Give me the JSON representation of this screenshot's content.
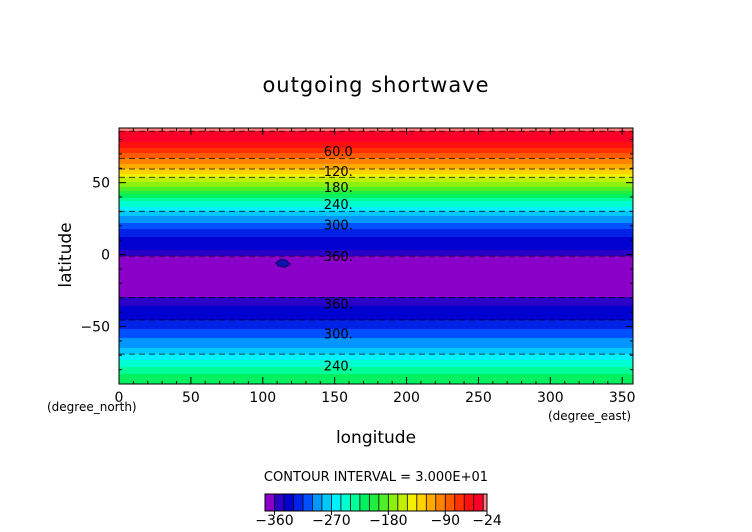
{
  "chart_data": {
    "type": "heatmap",
    "title": "outgoing shortwave",
    "xlabel": "longitude",
    "ylabel": "latitude",
    "x_unit": "(degree_east)",
    "y_unit": "(degree_north)",
    "xlim": [
      0,
      357.5
    ],
    "ylim": [
      -90,
      88
    ],
    "x_ticks": [
      0,
      50,
      100,
      150,
      200,
      250,
      300,
      350
    ],
    "x_tick_labels": [
      "0",
      "50",
      "100",
      "150",
      "200",
      "250",
      "300",
      "350"
    ],
    "y_ticks": [
      50,
      0,
      -50
    ],
    "y_tick_labels": [
      "50",
      "0",
      "−50"
    ],
    "contour_interval_text": "CONTOUR INTERVAL = 3.000E+01",
    "contour_interval": 30,
    "zonal_profile": {
      "lat": [
        88,
        80,
        74,
        68,
        62,
        57,
        52,
        47,
        42,
        37,
        32,
        27,
        22,
        17,
        12,
        7,
        2,
        -3,
        -10,
        -20,
        -28,
        -33,
        -38,
        -43,
        -48,
        -53,
        -58,
        -63,
        -68,
        -73,
        -78,
        -85,
        -90
      ],
      "value": [
        -26,
        -40,
        -60,
        -85,
        -110,
        -130,
        -160,
        -180,
        -210,
        -240,
        -260,
        -285,
        -300,
        -318,
        -330,
        -340,
        -346,
        -368,
        -368,
        -368,
        -367,
        -348,
        -342,
        -335,
        -325,
        -312,
        -300,
        -290,
        -275,
        -255,
        -240,
        -220,
        -210
      ]
    },
    "contour_labels": [
      {
        "text": "60.0",
        "lon": 140,
        "lat": 72
      },
      {
        "text": "120.",
        "lon": 140,
        "lat": 58
      },
      {
        "text": "180.",
        "lon": 140,
        "lat": 47
      },
      {
        "text": "240.",
        "lon": 140,
        "lat": 35
      },
      {
        "text": "300.",
        "lon": 140,
        "lat": 21
      },
      {
        "text": "360.",
        "lon": 140,
        "lat": -1
      },
      {
        "text": "360.",
        "lon": 140,
        "lat": -34
      },
      {
        "text": "300.",
        "lon": 140,
        "lat": -55
      },
      {
        "text": "240.",
        "lon": 140,
        "lat": -77
      }
    ],
    "colorbar": {
      "min": -375,
      "max": -24,
      "tick_values": [
        -360,
        -270,
        -180,
        -90,
        -24
      ],
      "tick_labels": [
        "−360",
        "−270",
        "−180",
        "−90",
        "−24"
      ],
      "bands": [
        {
          "from": -375,
          "to": -360,
          "color": "#8a00c8"
        },
        {
          "from": -360,
          "to": -345,
          "color": "#2a00c8"
        },
        {
          "from": -345,
          "to": -330,
          "color": "#0000d0"
        },
        {
          "from": -330,
          "to": -315,
          "color": "#0022e6"
        },
        {
          "from": -315,
          "to": -300,
          "color": "#0050ff"
        },
        {
          "from": -300,
          "to": -285,
          "color": "#0096ff"
        },
        {
          "from": -285,
          "to": -270,
          "color": "#00c8ff"
        },
        {
          "from": -270,
          "to": -255,
          "color": "#00f0ff"
        },
        {
          "from": -255,
          "to": -240,
          "color": "#00ffd0"
        },
        {
          "from": -240,
          "to": -225,
          "color": "#00ff98"
        },
        {
          "from": -225,
          "to": -210,
          "color": "#00f060"
        },
        {
          "from": -210,
          "to": -195,
          "color": "#20ee40"
        },
        {
          "from": -195,
          "to": -180,
          "color": "#50f028"
        },
        {
          "from": -180,
          "to": -165,
          "color": "#8cf010"
        },
        {
          "from": -165,
          "to": -150,
          "color": "#c0f000"
        },
        {
          "from": -150,
          "to": -135,
          "color": "#f0f000"
        },
        {
          "from": -135,
          "to": -120,
          "color": "#ffd200"
        },
        {
          "from": -120,
          "to": -105,
          "color": "#ffaa00"
        },
        {
          "from": -105,
          "to": -90,
          "color": "#ff8200"
        },
        {
          "from": -90,
          "to": -75,
          "color": "#ff5a00"
        },
        {
          "from": -75,
          "to": -60,
          "color": "#ff3000"
        },
        {
          "from": -60,
          "to": -45,
          "color": "#ff1010"
        },
        {
          "from": -45,
          "to": -30,
          "color": "#f80028"
        },
        {
          "from": -30,
          "to": -24,
          "color": "#ff8080"
        }
      ]
    }
  }
}
